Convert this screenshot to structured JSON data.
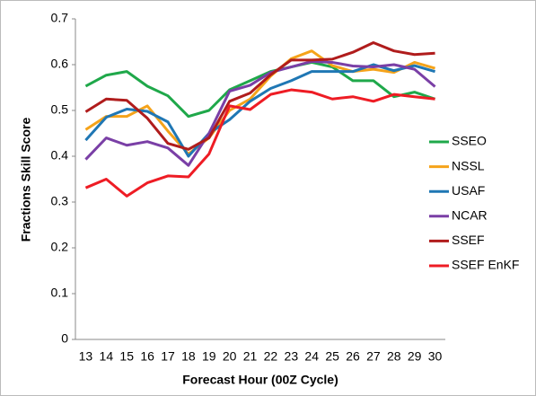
{
  "chart_data": {
    "type": "line",
    "y_label": "Fractions Skill Score",
    "x_label": "Forecast Hour (00Z Cycle)",
    "categories": [
      "13",
      "14",
      "15",
      "16",
      "17",
      "18",
      "19",
      "20",
      "21",
      "22",
      "23",
      "24",
      "25",
      "26",
      "27",
      "28",
      "29",
      "30"
    ],
    "ylim": [
      0,
      0.7
    ],
    "yticks": [
      0,
      0.1,
      0.2,
      0.3,
      0.4,
      0.5,
      0.6,
      0.7
    ],
    "grid": false,
    "legend": "right",
    "series": [
      {
        "name": "SSEO",
        "color": "#1fa84a",
        "values": [
          0.553,
          0.577,
          0.585,
          0.553,
          0.532,
          0.487,
          0.5,
          0.545,
          0.565,
          0.585,
          0.595,
          0.605,
          0.595,
          0.565,
          0.565,
          0.53,
          0.54,
          0.525
        ]
      },
      {
        "name": "NSSL",
        "color": "#f5a31a",
        "values": [
          0.458,
          0.487,
          0.487,
          0.51,
          0.455,
          0.405,
          0.44,
          0.5,
          0.525,
          0.575,
          0.613,
          0.63,
          0.598,
          0.585,
          0.59,
          0.583,
          0.605,
          0.592
        ]
      },
      {
        "name": "USAF",
        "color": "#1f77b4",
        "values": [
          0.435,
          0.485,
          0.503,
          0.498,
          0.475,
          0.4,
          0.45,
          0.48,
          0.52,
          0.548,
          0.565,
          0.585,
          0.585,
          0.585,
          0.6,
          0.587,
          0.598,
          0.585
        ]
      },
      {
        "name": "NCAR",
        "color": "#7a3fa6",
        "values": [
          0.393,
          0.44,
          0.424,
          0.432,
          0.418,
          0.38,
          0.45,
          0.542,
          0.555,
          0.583,
          0.595,
          0.607,
          0.605,
          0.597,
          0.595,
          0.6,
          0.59,
          0.552
        ]
      },
      {
        "name": "SSEF",
        "color": "#b01c1c",
        "values": [
          0.497,
          0.525,
          0.522,
          0.483,
          0.428,
          0.415,
          0.44,
          0.52,
          0.538,
          0.578,
          0.61,
          0.61,
          0.612,
          0.627,
          0.648,
          0.63,
          0.622,
          0.625
        ]
      },
      {
        "name": "SSEF EnKF",
        "color": "#ee1c24",
        "values": [
          0.331,
          0.35,
          0.313,
          0.342,
          0.357,
          0.355,
          0.405,
          0.51,
          0.502,
          0.535,
          0.545,
          0.54,
          0.525,
          0.53,
          0.52,
          0.535,
          0.53,
          0.525
        ]
      }
    ]
  }
}
